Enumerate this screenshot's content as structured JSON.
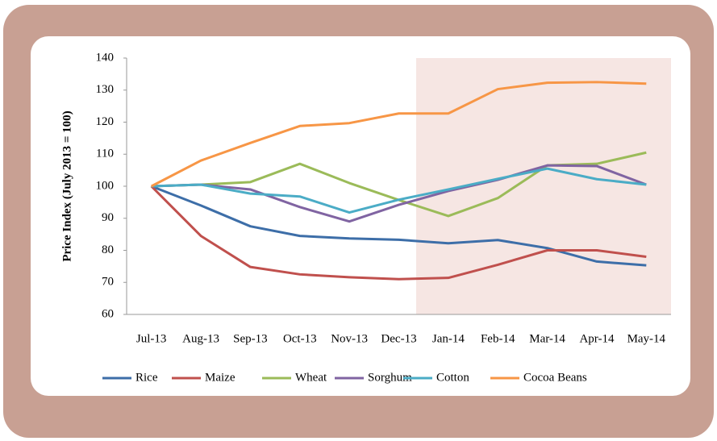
{
  "chart_data": {
    "type": "line",
    "y_label": "Price Index (July 2013 = 100)",
    "categories": [
      "Jul-13",
      "Aug-13",
      "Sep-13",
      "Oct-13",
      "Nov-13",
      "Dec-13",
      "Jan-14",
      "Feb-14",
      "Mar-14",
      "Apr-14",
      "May-14"
    ],
    "series": [
      {
        "name": "Rice",
        "color": "#3d6ea8",
        "values": [
          100,
          94,
          87.5,
          84.5,
          83.7,
          83.3,
          82.2,
          83.2,
          80.7,
          76.5,
          75.3
        ]
      },
      {
        "name": "Maize",
        "color": "#c0504d",
        "values": [
          100,
          84.5,
          74.8,
          72.5,
          71.6,
          71.0,
          71.4,
          75.5,
          80.0,
          80.0,
          78.0
        ]
      },
      {
        "name": "Wheat",
        "color": "#9bbb59",
        "values": [
          100,
          100.5,
          101.3,
          107,
          101,
          95.7,
          90.7,
          96.3,
          106.5,
          107,
          110.5
        ]
      },
      {
        "name": "Sorghum",
        "color": "#8064a2",
        "values": [
          100,
          100.5,
          99,
          93.5,
          89,
          94.2,
          98.5,
          102,
          106.5,
          106.3,
          100.5
        ]
      },
      {
        "name": "Cotton",
        "color": "#4bacc6",
        "values": [
          100,
          100.5,
          97.7,
          96.8,
          91.8,
          95.8,
          99,
          102.3,
          105.5,
          102.2,
          100.5
        ]
      },
      {
        "name": "Cocoa Beans",
        "color": "#f79646",
        "values": [
          100,
          108,
          113.5,
          118.8,
          119.7,
          122.7,
          122.7,
          130.3,
          132.3,
          132.5,
          132
        ]
      }
    ],
    "ylim": [
      60,
      140
    ],
    "yticks": [
      60,
      70,
      80,
      90,
      100,
      110,
      120,
      130,
      140
    ],
    "legend": "bottom"
  }
}
